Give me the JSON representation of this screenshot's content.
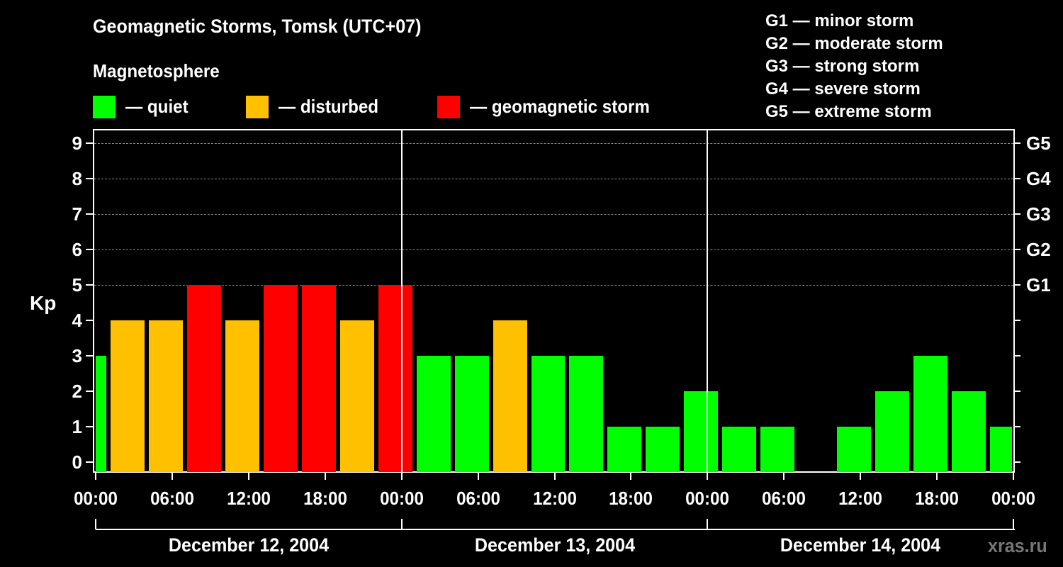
{
  "header": {
    "title": "Geomagnetic Storms, Tomsk (UTC+07)",
    "subtitle": "Magnetosphere"
  },
  "legend": [
    {
      "label": "— quiet",
      "color": "#00ff00"
    },
    {
      "label": "— disturbed",
      "color": "#ffc000"
    },
    {
      "label": "— geomagnetic storm",
      "color": "#ff0000"
    }
  ],
  "g_scale": [
    "G1 — minor storm",
    "G2 — moderate storm",
    "G3 — strong storm",
    "G4 — severe storm",
    "G5 — extreme storm"
  ],
  "axes": {
    "ylabel": "Kp",
    "yticks": [
      "0",
      "1",
      "2",
      "3",
      "4",
      "5",
      "6",
      "7",
      "8",
      "9"
    ],
    "right_ticks": [
      "G1",
      "G2",
      "G3",
      "G4",
      "G5"
    ],
    "xticks": [
      "00:00",
      "06:00",
      "12:00",
      "18:00",
      "00:00",
      "06:00",
      "12:00",
      "18:00",
      "00:00",
      "06:00",
      "12:00",
      "18:00",
      "00:00"
    ],
    "dates": [
      "December 12, 2004",
      "December 13, 2004",
      "December 14, 2004"
    ]
  },
  "watermark": "xras.ru",
  "colors": {
    "quiet": "#00ff00",
    "disturbed": "#ffc000",
    "storm": "#ff0000",
    "background": "#000000"
  },
  "chart_data": {
    "type": "bar",
    "title": "Geomagnetic Storms, Tomsk (UTC+07)",
    "xlabel": "",
    "ylabel": "Kp",
    "ylim": [
      0,
      9
    ],
    "grid": "dashed horizontal at Kp 5-9",
    "interval_hours": 3,
    "categories": [
      "Dec 11 22:00",
      "Dec 12 01:00",
      "Dec 12 04:00",
      "Dec 12 07:00",
      "Dec 12 10:00",
      "Dec 12 13:00",
      "Dec 12 16:00",
      "Dec 12 19:00",
      "Dec 12 22:00",
      "Dec 13 01:00",
      "Dec 13 04:00",
      "Dec 13 07:00",
      "Dec 13 10:00",
      "Dec 13 13:00",
      "Dec 13 16:00",
      "Dec 13 19:00",
      "Dec 13 22:00",
      "Dec 14 01:00",
      "Dec 14 04:00",
      "Dec 14 07:00",
      "Dec 14 10:00",
      "Dec 14 13:00",
      "Dec 14 16:00",
      "Dec 14 19:00",
      "Dec 14 22:00"
    ],
    "values": [
      3,
      4,
      4,
      5,
      4,
      5,
      5,
      4,
      5,
      3,
      3,
      4,
      3,
      3,
      1,
      1,
      2,
      1,
      1,
      0,
      1,
      2,
      3,
      2,
      1
    ],
    "status": [
      "quiet",
      "disturbed",
      "disturbed",
      "storm",
      "disturbed",
      "storm",
      "storm",
      "disturbed",
      "storm",
      "quiet",
      "quiet",
      "disturbed",
      "quiet",
      "quiet",
      "quiet",
      "quiet",
      "quiet",
      "quiet",
      "quiet",
      "quiet",
      "quiet",
      "quiet",
      "quiet",
      "quiet",
      "quiet"
    ],
    "legend": [
      "quiet",
      "disturbed",
      "geomagnetic storm"
    ],
    "right_axis": {
      "G1": 5,
      "G2": 6,
      "G3": 7,
      "G4": 8,
      "G5": 9
    }
  }
}
